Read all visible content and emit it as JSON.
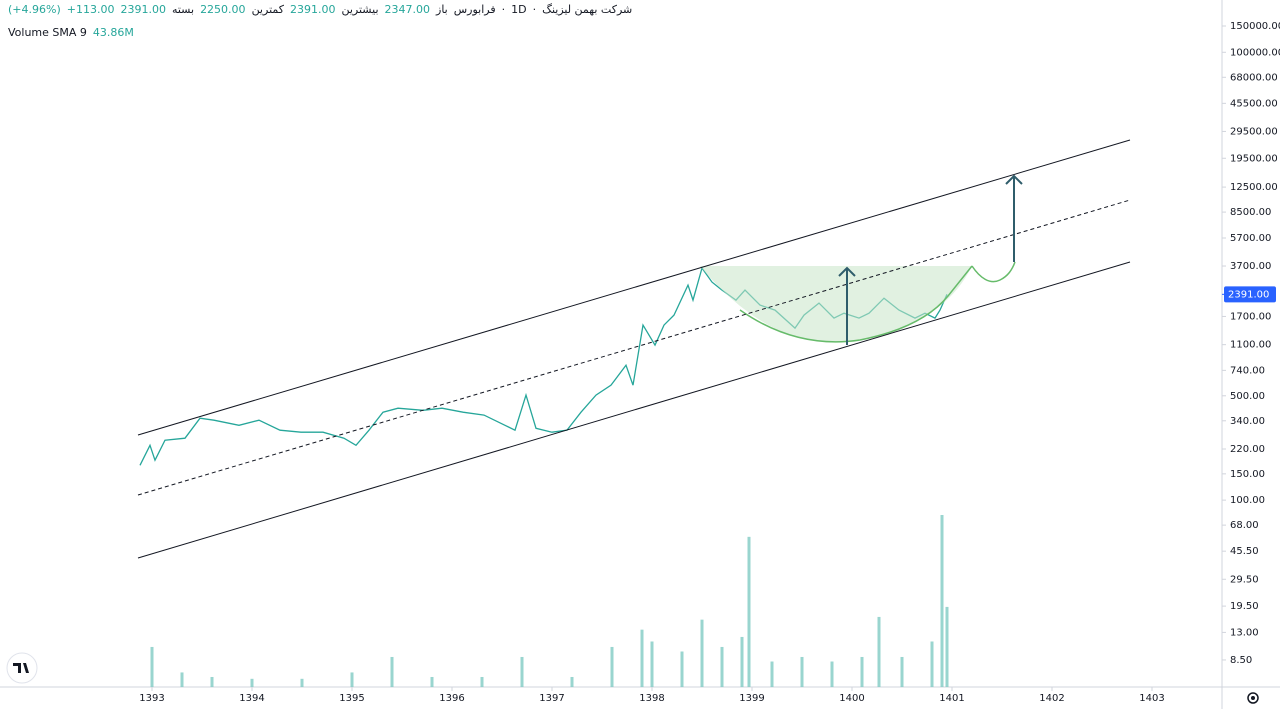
{
  "header": {
    "symbol": "شرکت بهمن لیزینگ",
    "interval": "1D",
    "exchange": "فرابورس",
    "open_label": "باز",
    "open": "2347.00",
    "high_label": "بیشترین",
    "high": "2391.00",
    "low_label": "کمترین",
    "low": "2250.00",
    "close_label": "بسته",
    "close": "2391.00",
    "change": "+113.00",
    "change_pct": "(+4.96%)",
    "volume_label": "Volume SMA 9",
    "volume_sma": "43.86M"
  },
  "chart_data": {
    "type": "line",
    "log_y": true,
    "color": "#26a69a",
    "xlim": [
      1391.48,
      1403.7
    ],
    "xticks": [
      1393,
      1394,
      1395,
      1396,
      1397,
      1398,
      1399,
      1400,
      1401,
      1402,
      1403
    ],
    "ylim": [
      5.6,
      224000
    ],
    "yticks": [
      {
        "value": 8.5,
        "label": "8.50"
      },
      {
        "value": 13,
        "label": "13.00"
      },
      {
        "value": 19.5,
        "label": "19.50"
      },
      {
        "value": 29.5,
        "label": "29.50"
      },
      {
        "value": 45.5,
        "label": "45.50"
      },
      {
        "value": 68,
        "label": "68.00"
      },
      {
        "value": 100,
        "label": "100.00"
      },
      {
        "value": 150,
        "label": "150.00"
      },
      {
        "value": 220,
        "label": "220.00"
      },
      {
        "value": 340,
        "label": "340.00"
      },
      {
        "value": 500,
        "label": "500.00"
      },
      {
        "value": 740,
        "label": "740.00"
      },
      {
        "value": 1100,
        "label": "1100.00"
      },
      {
        "value": 1700,
        "label": "1700.00"
      },
      {
        "value": 3700,
        "label": "3700.00"
      },
      {
        "value": 5700,
        "label": "5700.00"
      },
      {
        "value": 8500,
        "label": "8500.00"
      },
      {
        "value": 12500,
        "label": "12500.00"
      },
      {
        "value": 19500,
        "label": "19500.00"
      },
      {
        "value": 29500,
        "label": "29500.00"
      },
      {
        "value": 45500,
        "label": "45500.00"
      },
      {
        "value": 68000,
        "label": "68000.00"
      },
      {
        "value": 100000,
        "label": "100000.00"
      },
      {
        "value": 150000,
        "label": "150000.00"
      }
    ],
    "last_price": {
      "value": 2391,
      "label": "2391.00"
    },
    "x": [
      1392.88,
      1392.98,
      1393.03,
      1393.13,
      1393.33,
      1393.48,
      1393.62,
      1393.87,
      1394.07,
      1394.28,
      1394.49,
      1394.71,
      1394.92,
      1395.04,
      1395.17,
      1395.31,
      1395.46,
      1395.71,
      1395.9,
      1396.11,
      1396.32,
      1396.53,
      1396.63,
      1396.74,
      1396.84,
      1397.0,
      1397.15,
      1397.29,
      1397.44,
      1397.59,
      1397.74,
      1397.81,
      1397.91,
      1398.03,
      1398.12,
      1398.22,
      1398.36,
      1398.41,
      1398.5,
      1398.6,
      1398.7,
      1398.84,
      1398.93,
      1399.08,
      1399.23,
      1399.43,
      1399.52,
      1399.67,
      1399.82,
      1399.92,
      1400.07,
      1400.17,
      1400.32,
      1400.47,
      1400.63,
      1400.73,
      1400.83,
      1400.88,
      1400.95
    ],
    "values": [
      171,
      233,
      185,
      252,
      260,
      354,
      343,
      317,
      343,
      294,
      285,
      285,
      260,
      233,
      294,
      388,
      413,
      400,
      413,
      388,
      371,
      317,
      294,
      505,
      303,
      285,
      294,
      388,
      505,
      589,
      802,
      589,
      1488,
      1092,
      1488,
      1735,
      2757,
      2189,
      3583,
      2887,
      2552,
      2189,
      2552,
      2024,
      1874,
      1420,
      1735,
      2089,
      1656,
      1788,
      1656,
      1788,
      2253,
      1874,
      1656,
      1788,
      1656,
      1874,
      2391
    ],
    "volume": {
      "color": "#7fcbc3",
      "x": [
        1393.0,
        1393.3,
        1393.6,
        1394.0,
        1394.5,
        1395.0,
        1395.4,
        1395.8,
        1396.3,
        1396.7,
        1397.2,
        1397.6,
        1397.9,
        1398.0,
        1398.3,
        1398.5,
        1398.7,
        1398.9,
        1398.97,
        1399.2,
        1399.5,
        1399.8,
        1400.1,
        1400.27,
        1400.5,
        1400.8,
        1400.9,
        1400.95
      ],
      "values": [
        44,
        16,
        11,
        9,
        9,
        16,
        33,
        11,
        11,
        33,
        11,
        44,
        63,
        50,
        39,
        74,
        44,
        55,
        165,
        28,
        33,
        28,
        33,
        77,
        33,
        50,
        189,
        88
      ]
    }
  }
}
